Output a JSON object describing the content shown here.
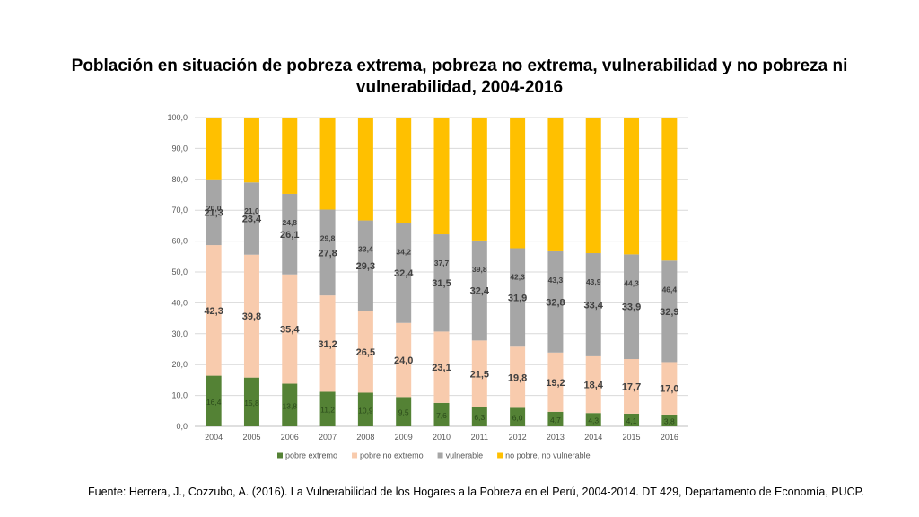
{
  "title": "Población en situación de pobreza extrema, pobreza no extrema, vulnerabilidad y no pobreza ni vulnerabilidad, 2004-2016",
  "source": "Fuente: Herrera, J., Cozzubo, A. (2016). La Vulnerabilidad de los Hogares a la Pobreza en el Perú, 2004-2014. DT 429, Departamento de Economía, PUCP.",
  "chart_data": {
    "type": "bar",
    "stacked": true,
    "categories": [
      "2004",
      "2005",
      "2006",
      "2007",
      "2008",
      "2009",
      "2010",
      "2011",
      "2012",
      "2013",
      "2014",
      "2015",
      "2016"
    ],
    "ylim": [
      0,
      100
    ],
    "yticks": [
      "0,0",
      "10,0",
      "20,0",
      "30,0",
      "40,0",
      "50,0",
      "60,0",
      "70,0",
      "80,0",
      "90,0",
      "100,0"
    ],
    "grid": true,
    "legend_position": "bottom",
    "series": [
      {
        "name": "pobre extremo",
        "color": "#548235",
        "values": [
          16.4,
          15.8,
          13.8,
          11.2,
          10.9,
          9.5,
          7.6,
          6.3,
          6.0,
          4.7,
          4.3,
          4.1,
          3.8
        ],
        "labels": [
          "16,4",
          "15,8",
          "13,8",
          "11,2",
          "10,9",
          "9,5",
          "7,6",
          "6,3",
          "6,0",
          "4,7",
          "4,3",
          "4,1",
          "3,8"
        ]
      },
      {
        "name": "pobre no extremo",
        "color": "#F8CBAD",
        "values": [
          42.3,
          39.8,
          35.4,
          31.2,
          26.5,
          24.0,
          23.1,
          21.5,
          19.8,
          19.2,
          18.4,
          17.7,
          17.0
        ],
        "labels": [
          "42,3",
          "39,8",
          "35,4",
          "31,2",
          "26,5",
          "24,0",
          "23,1",
          "21,5",
          "19,8",
          "19,2",
          "18,4",
          "17,7",
          "17,0"
        ]
      },
      {
        "name": "vulnerable",
        "color": "#A6A6A6",
        "values": [
          21.3,
          23.4,
          26.1,
          27.8,
          29.3,
          32.4,
          31.5,
          32.4,
          31.9,
          32.8,
          33.4,
          33.9,
          32.9
        ],
        "labels": [
          "21,3",
          "23,4",
          "26,1",
          "27,8",
          "29,3",
          "32,4",
          "31,5",
          "32,4",
          "31,9",
          "32,8",
          "33,4",
          "33,9",
          "32,9"
        ]
      },
      {
        "name": "no pobre, no vulnerable",
        "color": "#FFC000",
        "values": [
          20.0,
          21.0,
          24.8,
          29.8,
          33.4,
          34.2,
          37.7,
          39.8,
          42.3,
          43.3,
          43.9,
          44.3,
          46.4
        ],
        "labels": [
          "20,0",
          "21,0",
          "24,8",
          "29,8",
          "33,4",
          "34,2",
          "37,7",
          "39,8",
          "42,3",
          "43,3",
          "43,9",
          "44,3",
          "46,4"
        ]
      }
    ]
  }
}
